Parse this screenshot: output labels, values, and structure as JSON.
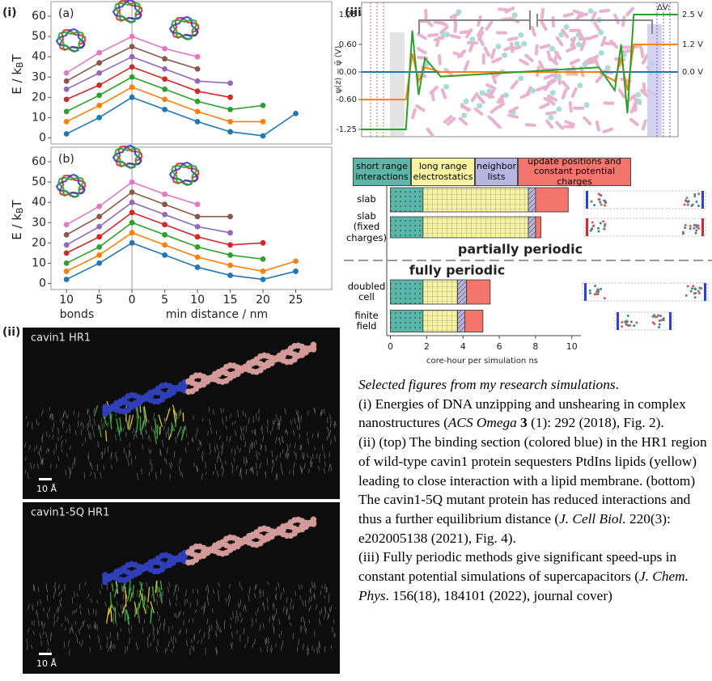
{
  "panel_labels": {
    "i": "(i)",
    "ii": "(ii)",
    "iii": "(iii)"
  },
  "panel_i": [
    {
      "type": "line",
      "label": "(a)",
      "ylabel_parts": [
        "E / k",
        "B",
        "T"
      ],
      "x": [
        -10,
        -5,
        0,
        5,
        10,
        15,
        20,
        25
      ],
      "xlim": [
        -12,
        30
      ],
      "ylim": [
        -3,
        66
      ],
      "yticks": [
        0,
        10,
        20,
        30,
        40,
        50,
        60
      ],
      "series": [
        {
          "color": "#1f77b4",
          "values": [
            2,
            10,
            20,
            14,
            8,
            3,
            1,
            12
          ]
        },
        {
          "color": "#ff7f0e",
          "values": [
            8,
            16,
            25,
            19,
            13,
            8,
            8,
            null
          ]
        },
        {
          "color": "#2ca02c",
          "values": [
            13,
            21,
            30,
            24,
            18,
            14,
            16,
            null
          ]
        },
        {
          "color": "#d62728",
          "values": [
            19,
            26,
            35,
            29,
            23,
            20,
            null,
            null
          ]
        },
        {
          "color": "#9467bd",
          "values": [
            24,
            32,
            40,
            34,
            28,
            27,
            null,
            null
          ]
        },
        {
          "color": "#8c564b",
          "values": [
            28,
            37,
            45,
            39,
            34,
            null,
            null,
            null
          ]
        },
        {
          "color": "#e377c2",
          "values": [
            32,
            42,
            50,
            44,
            40,
            null,
            null,
            null
          ]
        }
      ]
    },
    {
      "type": "line",
      "label": "(b)",
      "ylabel_parts": [
        "E / k",
        "B",
        "T"
      ],
      "x": [
        -10,
        -5,
        0,
        5,
        10,
        15,
        20,
        25
      ],
      "xlim": [
        -12,
        30
      ],
      "ylim": [
        -3,
        66
      ],
      "yticks": [
        0,
        10,
        20,
        30,
        40,
        50,
        60
      ],
      "xticks": [
        {
          "value": -10,
          "label": "10"
        },
        {
          "value": -5,
          "label": "5"
        },
        0,
        5,
        10,
        15,
        20,
        25
      ],
      "xlabel_left": "bonds",
      "xlabel_right": "min distance / nm",
      "series": [
        {
          "color": "#1f77b4",
          "values": [
            2,
            10,
            20,
            14,
            8,
            4,
            2,
            6
          ]
        },
        {
          "color": "#ff7f0e",
          "values": [
            6,
            14,
            25,
            19,
            13,
            9,
            6,
            11
          ]
        },
        {
          "color": "#2ca02c",
          "values": [
            10,
            18,
            30,
            24,
            18,
            14,
            12,
            null
          ]
        },
        {
          "color": "#d62728",
          "values": [
            15,
            23,
            35,
            29,
            23,
            19,
            20,
            null
          ]
        },
        {
          "color": "#9467bd",
          "values": [
            19,
            28,
            40,
            34,
            28,
            25,
            null,
            null
          ]
        },
        {
          "color": "#8c564b",
          "values": [
            24,
            33,
            45,
            39,
            33,
            33,
            null,
            null
          ]
        },
        {
          "color": "#e377c2",
          "values": [
            29,
            38,
            50,
            44,
            39,
            null,
            null,
            null
          ]
        }
      ]
    }
  ],
  "panel_ii": [
    {
      "label": "cavin1 HR1",
      "scale": "10 Å"
    },
    {
      "label": "cavin1-5Q HR1",
      "scale": "10 Å"
    }
  ],
  "panel_iii_potential": {
    "type": "line",
    "ylabel": "ψ(z) − ψ̄ (V)",
    "x": [
      0,
      14,
      16,
      18,
      20,
      25,
      50,
      75,
      80,
      82,
      84,
      86,
      100
    ],
    "xlim": [
      0,
      100
    ],
    "ylim": [
      -1.4,
      1.5
    ],
    "yticks": [
      {
        "value": 1.25,
        "label": "1.25"
      },
      {
        "value": 0.6,
        "label": "0.60"
      },
      {
        "value": 0,
        "label": "0.00"
      },
      {
        "value": -0.6,
        "label": "-0.60"
      },
      {
        "value": -1.25,
        "label": "-1.25"
      }
    ],
    "right_title": "ΔV:",
    "series": [
      {
        "name": "2.5 V",
        "color": "#2ca02c",
        "values": [
          -1.25,
          -1.25,
          0.9,
          -0.5,
          0.3,
          -0.1,
          0,
          0.1,
          -0.4,
          0.6,
          -0.9,
          1.25,
          1.25
        ]
      },
      {
        "name": "1.2 V",
        "color": "#ff7f0e",
        "values": [
          -0.6,
          -0.6,
          0.4,
          -0.2,
          0.1,
          0,
          0,
          0,
          -0.2,
          0.3,
          -0.4,
          0.6,
          0.6
        ]
      },
      {
        "name": "0.0 V",
        "color": "#1f77b4",
        "values": [
          0,
          0,
          0,
          0,
          0,
          0,
          0,
          0,
          0,
          0,
          0,
          0,
          0
        ]
      }
    ]
  },
  "panel_iii_timing": {
    "type": "bar",
    "orientation": "horizontal",
    "stacked": true,
    "categories": [
      "slab",
      "slab (fixed charges)",
      "doubled cell",
      "finite field"
    ],
    "xlim": [
      -0.2,
      10.5
    ],
    "xticks": [
      0,
      2,
      4,
      6,
      8,
      10
    ],
    "xlabel": "core-hour per simulation ns",
    "section_labels": [
      "partially periodic",
      "fully periodic"
    ],
    "series": [
      {
        "name": "short range interactions",
        "color": "#5bb5a8",
        "values": [
          1.8,
          1.8,
          1.8,
          1.8
        ]
      },
      {
        "name": "long range electrostatics",
        "color": "#f7f3a0",
        "values": [
          5.8,
          5.8,
          1.9,
          1.9
        ]
      },
      {
        "name": "neighbor lists",
        "color": "#b8b5e0",
        "values": [
          0.4,
          0.4,
          0.5,
          0.4
        ]
      },
      {
        "name": "update positions and constant potential charges",
        "color": "#f4756b",
        "values": [
          1.8,
          0.3,
          1.3,
          1.0
        ]
      }
    ]
  },
  "caption": {
    "intro": "Selected figures from my research simulations",
    "intro_end": ".",
    "i_text": "(i) Energies of DNA unzipping and unshearing in complex nanostructures (",
    "i_journal": "ACS Omega",
    "i_volume": "3",
    "i_rest": " (1): 292 (2018), Fig. 2).",
    "ii_text": "(ii) (top) The binding section (colored blue) in the HR1 region of wild-type cavin1 protein sequesters PtdIns lipids (yellow) leading to close interaction with a lipid membrane. (bottom) The cavin1-5Q mutant protein has reduced interactions and thus a further equilibrium distance (",
    "ii_journal": "J. Cell Biol.",
    "ii_rest": " 220(3): e202005138 (2021), Fig. 4).",
    "iii_text": "(iii) Fully periodic methods give significant speed-ups in constant potential simulations of supercapacitors (",
    "iii_journal": "J. Chem. Phys",
    "iii_rest": ". 156(18), 184101 (2022), journal cover)"
  }
}
